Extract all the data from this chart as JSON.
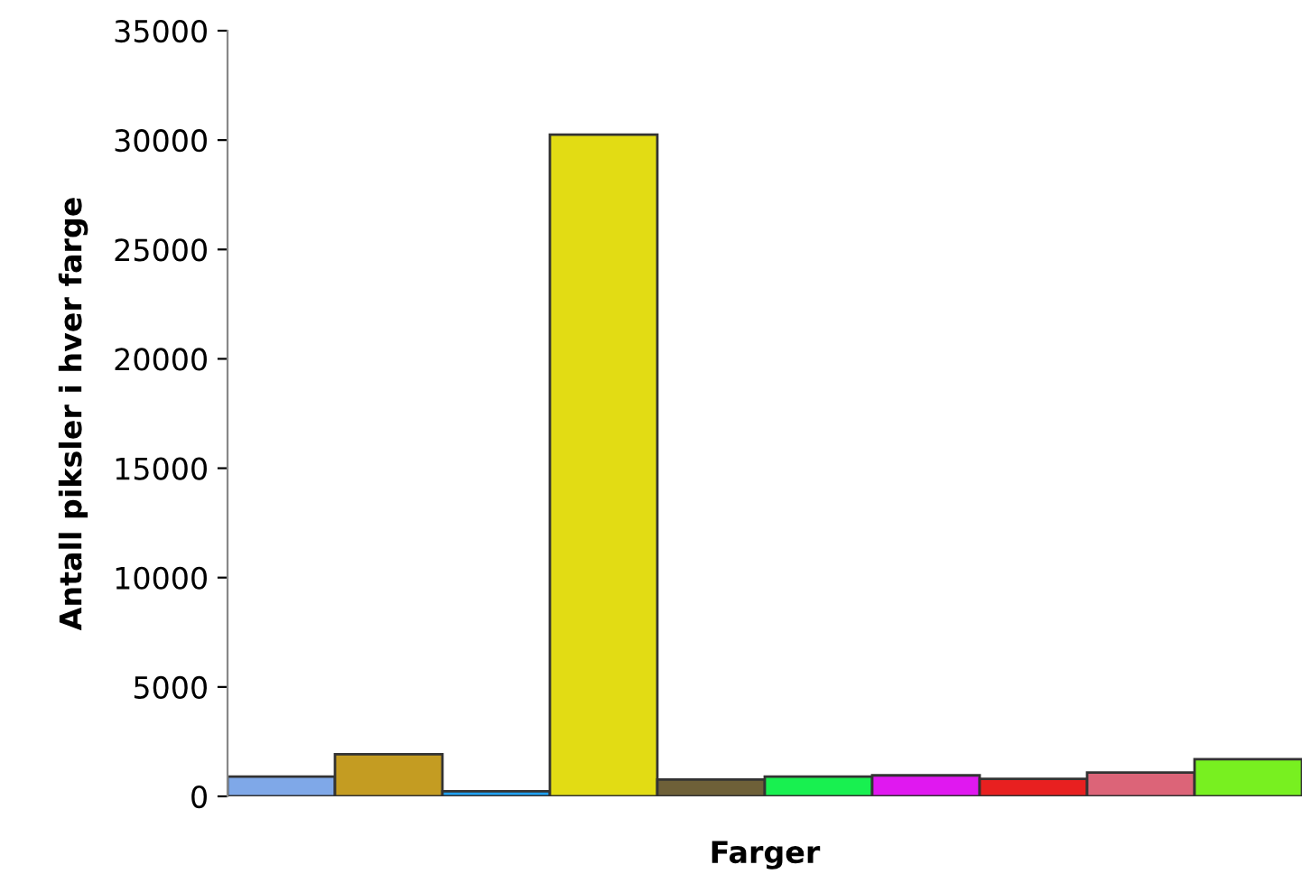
{
  "chart_data": {
    "type": "bar",
    "xlabel": "Farger",
    "ylabel": "Antall piksler i hver farge",
    "categories": [
      null,
      null,
      null,
      null,
      null,
      null,
      null,
      null,
      null,
      null
    ],
    "values": [
      900,
      1925,
      230,
      30250,
      770,
      900,
      960,
      800,
      1090,
      1700
    ],
    "colors": [
      "#7fa8e8",
      "#c49c22",
      "#1ea0f0",
      "#e2dc14",
      "#6e6038",
      "#18f050",
      "#e018f0",
      "#e82020",
      "#dc6478",
      "#78f020"
    ],
    "ylim": [
      0,
      35000
    ],
    "yticks": [
      0,
      5000,
      10000,
      15000,
      20000,
      25000,
      30000,
      35000
    ],
    "grid": false,
    "legend": false
  }
}
